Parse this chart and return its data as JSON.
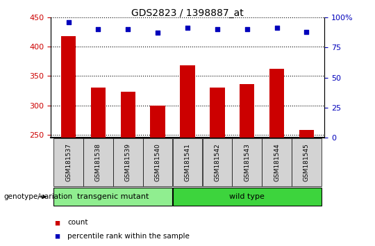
{
  "title": "GDS2823 / 1398887_at",
  "samples": [
    "GSM181537",
    "GSM181538",
    "GSM181539",
    "GSM181540",
    "GSM181541",
    "GSM181542",
    "GSM181543",
    "GSM181544",
    "GSM181545"
  ],
  "counts": [
    418,
    330,
    323,
    300,
    368,
    330,
    336,
    362,
    258
  ],
  "percentile_ranks": [
    96,
    90,
    90,
    87,
    91,
    90,
    90,
    91,
    88
  ],
  "group_labels": [
    "transgenic mutant",
    "wild type"
  ],
  "group_ranges": [
    [
      0,
      4
    ],
    [
      4,
      9
    ]
  ],
  "group_colors": [
    "#90EE90",
    "#3DD43D"
  ],
  "ylim_left": [
    245,
    450
  ],
  "ylim_right": [
    0,
    100
  ],
  "yticks_left": [
    250,
    300,
    350,
    400,
    450
  ],
  "yticks_right": [
    0,
    25,
    50,
    75,
    100
  ],
  "bar_color": "#CC0000",
  "dot_color": "#0000BB",
  "bar_width": 0.5,
  "tick_color_left": "#CC0000",
  "tick_color_right": "#0000BB",
  "legend_count_label": "count",
  "legend_pct_label": "percentile rank within the sample",
  "genotype_label": "genotype/variation",
  "sample_bg_color": "#d3d3d3"
}
